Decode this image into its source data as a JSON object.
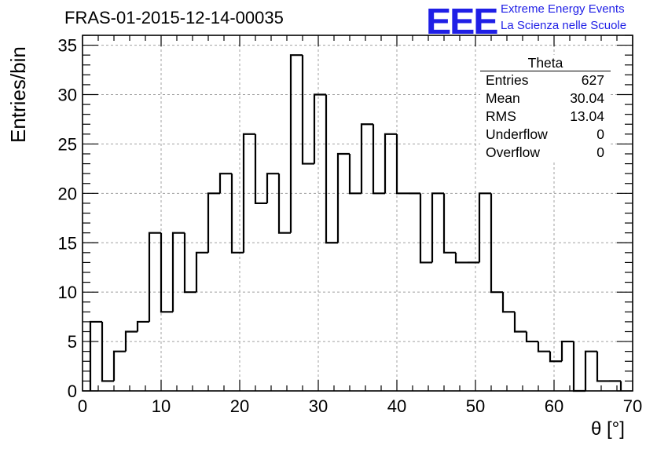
{
  "header": {
    "run_title": "FRAS-01-2015-12-14-00035",
    "logo_mark": "EEE",
    "logo_line1": "Extreme Energy Events",
    "logo_line2": "La Scienza nelle Scuole",
    "logo_color": "#1f1fe6"
  },
  "stats": {
    "name": "Theta",
    "rows": [
      {
        "label": "Entries",
        "value": "627"
      },
      {
        "label": "Mean",
        "value": "30.04"
      },
      {
        "label": "RMS",
        "value": "13.04"
      },
      {
        "label": "Underflow",
        "value": "0"
      },
      {
        "label": "Overflow",
        "value": "0"
      }
    ]
  },
  "chart_data": {
    "type": "bar",
    "histogram": true,
    "title": "FRAS-01-2015-12-14-00035",
    "xlabel": "θ [°]",
    "ylabel": "Entries/bin",
    "xlim": [
      0,
      70
    ],
    "ylim": [
      0,
      36
    ],
    "xticks": [
      0,
      10,
      20,
      30,
      40,
      50,
      60,
      70
    ],
    "yticks": [
      0,
      5,
      10,
      15,
      20,
      25,
      30,
      35
    ],
    "grid": true,
    "line_color": "#000000",
    "bin_width": 1.5,
    "bin_start": 1.0,
    "values": [
      7,
      1,
      4,
      6,
      7,
      16,
      8,
      16,
      10,
      14,
      20,
      22,
      14,
      26,
      19,
      22,
      16,
      34,
      23,
      30,
      15,
      24,
      20,
      27,
      20,
      26,
      20,
      20,
      13,
      20,
      14,
      13,
      13,
      20,
      10,
      8,
      6,
      5,
      4,
      3,
      5,
      0,
      4,
      1,
      1
    ]
  }
}
